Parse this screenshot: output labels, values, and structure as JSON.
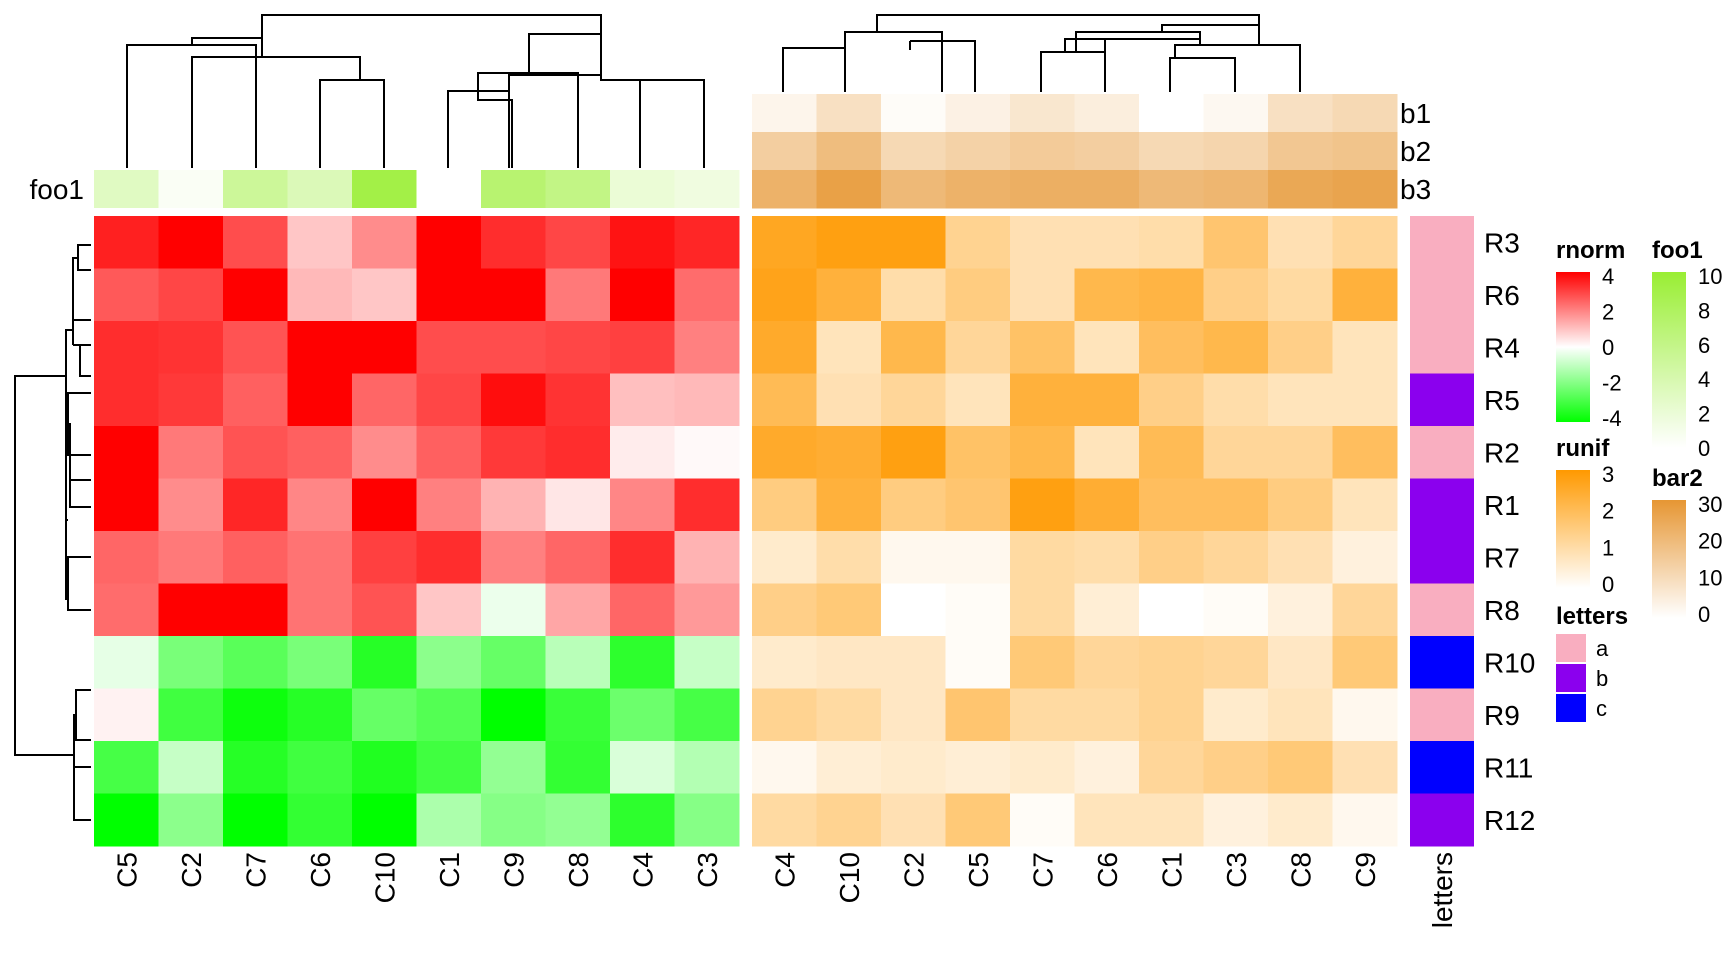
{
  "chart_data": {
    "type": "heatmap",
    "rows": [
      "R3",
      "R6",
      "R4",
      "R5",
      "R2",
      "R1",
      "R7",
      "R8",
      "R10",
      "R9",
      "R11",
      "R12"
    ],
    "heatmaps": [
      {
        "name": "rnorm",
        "columns": [
          "C5",
          "C2",
          "C7",
          "C6",
          "C10",
          "C1",
          "C9",
          "C8",
          "C4",
          "C3"
        ],
        "values": [
          [
            3.5,
            4.0,
            2.8,
            0.9,
            1.8,
            4.0,
            3.3,
            2.9,
            3.7,
            3.4
          ],
          [
            2.6,
            2.9,
            4.0,
            1.1,
            0.9,
            4.0,
            4.0,
            2.1,
            4.0,
            2.3
          ],
          [
            3.3,
            3.2,
            2.7,
            4.0,
            4.0,
            2.8,
            2.8,
            2.9,
            3.0,
            2.0
          ],
          [
            3.3,
            3.1,
            2.5,
            4.0,
            2.4,
            2.9,
            3.8,
            3.2,
            1.0,
            1.1
          ],
          [
            4.0,
            2.1,
            2.7,
            2.5,
            1.8,
            2.5,
            3.1,
            3.3,
            0.3,
            0.1
          ],
          [
            4.0,
            1.8,
            3.4,
            1.9,
            4.0,
            2.0,
            1.2,
            0.4,
            1.9,
            3.3
          ],
          [
            2.4,
            2.1,
            2.5,
            2.2,
            3.0,
            3.3,
            2.0,
            2.4,
            3.3,
            1.2
          ],
          [
            2.3,
            4.0,
            4.0,
            2.2,
            2.7,
            0.9,
            -0.3,
            1.4,
            2.4,
            1.6
          ],
          [
            -0.4,
            -2.1,
            -2.6,
            -2.1,
            -3.4,
            -1.8,
            -2.4,
            -1.1,
            -3.3,
            -0.9
          ],
          [
            0.2,
            -3.0,
            -3.8,
            -3.4,
            -2.4,
            -2.7,
            -4.0,
            -3.1,
            -2.3,
            -2.9
          ],
          [
            -2.9,
            -0.9,
            -3.4,
            -3.0,
            -3.5,
            -3.0,
            -1.7,
            -3.2,
            -0.6,
            -1.2
          ],
          [
            -4.0,
            -1.8,
            -4.0,
            -3.2,
            -4.0,
            -1.3,
            -1.9,
            -1.7,
            -3.3,
            -1.9
          ]
        ],
        "legend": {
          "title": "rnorm",
          "ticks": [
            4,
            2,
            0,
            -2,
            -4
          ],
          "colors": [
            "#ff0000",
            "#ffffff",
            "#00ff00"
          ]
        }
      },
      {
        "name": "runif",
        "columns": [
          "C4",
          "C10",
          "C2",
          "C5",
          "C7",
          "C6",
          "C1",
          "C3",
          "C8",
          "C9"
        ],
        "values": [
          [
            2.6,
            2.8,
            2.8,
            1.3,
            0.9,
            0.9,
            1.0,
            1.7,
            0.9,
            1.2
          ],
          [
            2.7,
            2.3,
            1.0,
            1.5,
            0.9,
            2.1,
            2.2,
            1.4,
            1.1,
            2.3
          ],
          [
            2.5,
            0.8,
            2.1,
            1.2,
            1.8,
            0.8,
            1.9,
            2.1,
            1.4,
            0.8
          ],
          [
            2.0,
            0.9,
            1.2,
            0.8,
            2.3,
            2.3,
            1.4,
            1.0,
            0.8,
            0.8
          ],
          [
            2.5,
            2.4,
            2.8,
            1.8,
            2.1,
            0.8,
            2.0,
            1.2,
            1.2,
            1.9
          ],
          [
            1.5,
            2.3,
            1.5,
            1.7,
            2.8,
            2.4,
            1.9,
            1.9,
            1.5,
            0.8
          ],
          [
            0.6,
            1.0,
            0.2,
            0.2,
            1.1,
            1.0,
            1.4,
            1.2,
            0.9,
            0.4
          ],
          [
            1.4,
            1.6,
            0.0,
            0.1,
            1.1,
            0.5,
            0.0,
            0.1,
            0.4,
            1.2
          ],
          [
            0.6,
            0.7,
            0.7,
            0.1,
            1.6,
            1.2,
            1.3,
            1.2,
            0.7,
            1.6
          ],
          [
            1.3,
            1.1,
            0.7,
            1.7,
            1.1,
            1.1,
            1.3,
            0.6,
            0.8,
            0.2
          ],
          [
            0.2,
            0.5,
            0.6,
            0.5,
            0.6,
            0.4,
            1.2,
            1.4,
            1.6,
            0.9
          ],
          [
            1.1,
            1.3,
            0.9,
            1.6,
            0.1,
            0.8,
            0.8,
            0.4,
            0.6,
            0.2
          ]
        ],
        "legend": {
          "title": "runif",
          "ticks": [
            3,
            2,
            1,
            0
          ],
          "colors": [
            "#ff9900",
            "#ffffff"
          ]
        }
      }
    ],
    "row_annotation": {
      "name": "letters",
      "values": [
        "a",
        "a",
        "a",
        "b",
        "a",
        "b",
        "b",
        "a",
        "c",
        "a",
        "c",
        "b"
      ],
      "legend": {
        "title": "letters",
        "levels": [
          {
            "label": "a",
            "color": "#f9aec0"
          },
          {
            "label": "b",
            "color": "#8b00ee"
          },
          {
            "label": "c",
            "color": "#0000ff"
          }
        ]
      }
    },
    "column_annotations": {
      "foo1": {
        "label": "foo1",
        "values": [
          3,
          0.5,
          5,
          3.5,
          9,
          0,
          7,
          6,
          2,
          1.5
        ],
        "legend": {
          "title": "foo1",
          "ticks": [
            10,
            8,
            6,
            4,
            2,
            0
          ],
          "colors": [
            "#99ee33",
            "#ffffff"
          ]
        }
      },
      "bar2": {
        "labels": [
          "b1",
          "b2",
          "b3"
        ],
        "values": [
          [
            3,
            9,
            1,
            4,
            7,
            5,
            0,
            2,
            9,
            11
          ],
          [
            14,
            19,
            11,
            13,
            15,
            14,
            11,
            12,
            16,
            17
          ],
          [
            22,
            27,
            20,
            22,
            23,
            23,
            20,
            21,
            25,
            26
          ]
        ],
        "legend": {
          "title": "bar2",
          "ticks": [
            30,
            20,
            10,
            0
          ],
          "colors": [
            "#e69633",
            "#ffffff"
          ]
        }
      }
    }
  }
}
